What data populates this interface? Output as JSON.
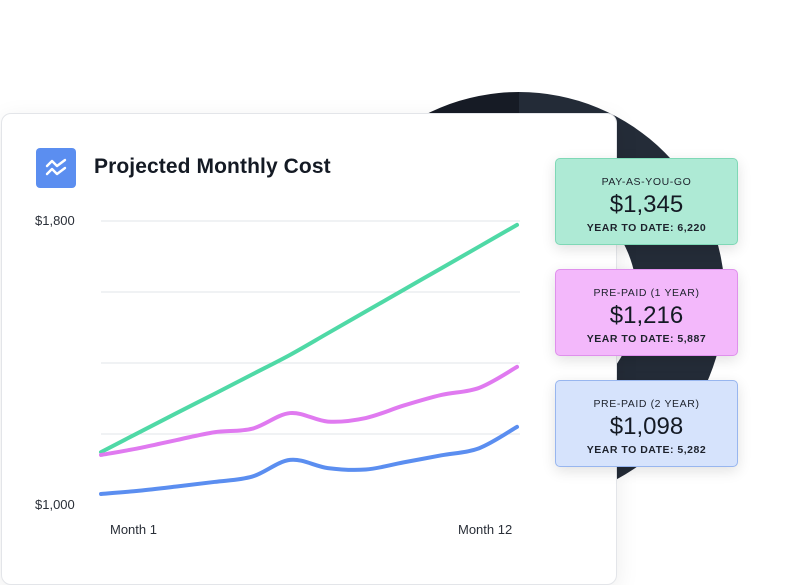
{
  "colors": {
    "green": "#4fd9a6",
    "pink": "#e07af0",
    "blue": "#5b8ef0",
    "ring_left": "#171c26",
    "ring_right": "#242c38"
  },
  "header": {
    "title": "Projected Monthly Cost",
    "icon": "trend-lines-icon"
  },
  "plans": [
    {
      "name": "PAY-AS-YOU-GO",
      "price": "$1,345",
      "ytd": "YEAR TO DATE: 6,220",
      "bg": "#aeead5",
      "border": "#7fd8b6"
    },
    {
      "name": "PRE-PAID (1 YEAR)",
      "price": "$1,216",
      "ytd": "YEAR TO DATE: 5,887",
      "bg": "#f3b8fb",
      "border": "#df90ec"
    },
    {
      "name": "PRE-PAID (2 YEAR)",
      "price": "$1,098",
      "ytd": "YEAR TO DATE: 5,282",
      "bg": "#d6e3fc",
      "border": "#98b6ef"
    }
  ],
  "chart_data": {
    "type": "line",
    "title": "Projected Monthly Cost",
    "x": [
      1,
      2,
      3,
      4,
      5,
      6,
      7,
      8,
      9,
      10,
      11,
      12
    ],
    "x_tick_labels": [
      "Month 1",
      "Month 12"
    ],
    "y_tick_labels": [
      "$1,800",
      "$1,000"
    ],
    "ylim": [
      1000,
      1800
    ],
    "grid": true,
    "series": [
      {
        "name": "Pay-as-you-go",
        "color": "#4fd9a6",
        "values": [
          1149,
          1204,
          1259,
          1313,
          1368,
          1423,
          1484,
          1545,
          1606,
          1667,
          1728,
          1789
        ]
      },
      {
        "name": "Pre-paid (1 year)",
        "color": "#e07af0",
        "values": [
          1141,
          1160,
          1183,
          1205,
          1215,
          1259,
          1235,
          1245,
          1280,
          1310,
          1330,
          1389
        ]
      },
      {
        "name": "Pre-paid (2 year)",
        "color": "#5b8ef0",
        "values": [
          1031,
          1040,
          1052,
          1065,
          1080,
          1127,
          1104,
          1100,
          1120,
          1140,
          1160,
          1220
        ]
      }
    ]
  }
}
